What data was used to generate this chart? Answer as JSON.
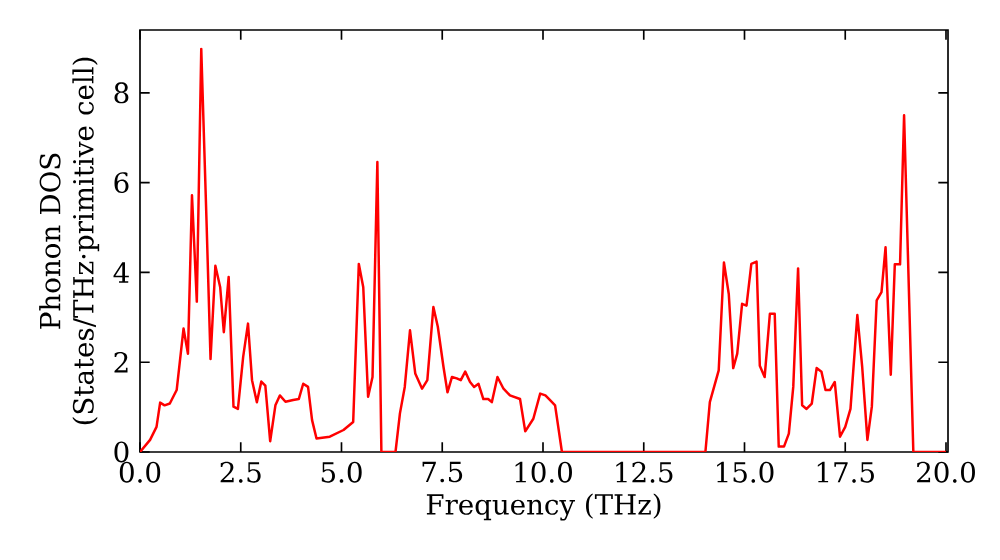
{
  "chart_data": {
    "type": "line",
    "xlabel": "Frequency (THz)",
    "ylabel": "Phonon DOS (States/THz·primitive cell)",
    "xlim": [
      0,
      20.05
    ],
    "ylim": [
      0,
      9.4
    ],
    "xticks": [
      {
        "value": 0,
        "label": "0.0"
      },
      {
        "value": 2.5,
        "label": "2.5"
      },
      {
        "value": 5,
        "label": "5.0"
      },
      {
        "value": 7.5,
        "label": "7.5"
      },
      {
        "value": 10,
        "label": "10.0"
      },
      {
        "value": 12.5,
        "label": "12.5"
      },
      {
        "value": 15,
        "label": "15.0"
      },
      {
        "value": 17.5,
        "label": "17.5"
      },
      {
        "value": 20,
        "label": "20.0"
      }
    ],
    "yticks": [
      0,
      2,
      4,
      6,
      8
    ],
    "grid": false,
    "marker": "none",
    "line_style": "solid",
    "series": [
      {
        "color": "#ff0000",
        "x": [
          0,
          0.25,
          0.41,
          0.5,
          0.61,
          0.74,
          0.91,
          1.08,
          1.19,
          1.29,
          1.41,
          1.52,
          1.65,
          1.75,
          1.87,
          1.99,
          2.08,
          2.2,
          2.32,
          2.43,
          2.56,
          2.68,
          2.78,
          2.9,
          3.01,
          3.11,
          3.23,
          3.36,
          3.47,
          3.61,
          3.8,
          3.94,
          4.05,
          4.17,
          4.27,
          4.38,
          4.71,
          5.05,
          5.29,
          5.43,
          5.54,
          5.66,
          5.77,
          5.89,
          5.99,
          6.34,
          6.45,
          6.57,
          6.7,
          6.83,
          7.0,
          7.13,
          7.28,
          7.39,
          7.53,
          7.63,
          7.74,
          7.86,
          7.96,
          8.07,
          8.19,
          8.29,
          8.4,
          8.52,
          8.64,
          8.73,
          8.87,
          9.02,
          9.18,
          9.43,
          9.56,
          9.76,
          9.93,
          10.06,
          10.17,
          10.3,
          10.47,
          14.03,
          14.14,
          14.36,
          14.49,
          14.61,
          14.72,
          14.82,
          14.94,
          15.05,
          15.17,
          15.3,
          15.38,
          15.5,
          15.63,
          15.75,
          15.85,
          15.98,
          16.1,
          16.21,
          16.33,
          16.43,
          16.54,
          16.67,
          16.79,
          16.91,
          17.01,
          17.12,
          17.24,
          17.37,
          17.5,
          17.63,
          17.8,
          17.92,
          18.05,
          18.16,
          18.28,
          18.4,
          18.5,
          18.63,
          18.73,
          18.86,
          18.96,
          19.19,
          20.0
        ],
        "values": [
          0,
          0.27,
          0.56,
          1.1,
          1.04,
          1.08,
          1.38,
          2.75,
          2.19,
          5.72,
          3.35,
          8.98,
          5.16,
          2.07,
          4.15,
          3.67,
          2.67,
          3.9,
          1.01,
          0.96,
          2.12,
          2.86,
          1.6,
          1.11,
          1.57,
          1.48,
          0.24,
          1.04,
          1.26,
          1.12,
          1.16,
          1.18,
          1.52,
          1.45,
          0.71,
          0.3,
          0.34,
          0.49,
          0.67,
          4.19,
          3.67,
          1.23,
          1.67,
          6.46,
          0,
          0,
          0.86,
          1.45,
          2.71,
          1.75,
          1.41,
          1.6,
          3.23,
          2.79,
          1.9,
          1.33,
          1.67,
          1.64,
          1.6,
          1.79,
          1.56,
          1.45,
          1.52,
          1.18,
          1.18,
          1.11,
          1.67,
          1.41,
          1.26,
          1.18,
          0.46,
          0.74,
          1.3,
          1.26,
          1.16,
          1.04,
          0,
          0,
          1.11,
          1.82,
          4.22,
          3.52,
          1.87,
          2.19,
          3.3,
          3.26,
          4.19,
          4.24,
          1.92,
          1.67,
          3.08,
          3.08,
          0.12,
          0.12,
          0.41,
          1.45,
          4.09,
          1.04,
          0.96,
          1.08,
          1.87,
          1.79,
          1.38,
          1.38,
          1.56,
          0.34,
          0.56,
          0.96,
          3.05,
          1.9,
          0.27,
          1.01,
          3.38,
          3.56,
          4.56,
          1.72,
          4.18,
          4.18,
          7.5,
          0,
          0
        ]
      }
    ]
  }
}
